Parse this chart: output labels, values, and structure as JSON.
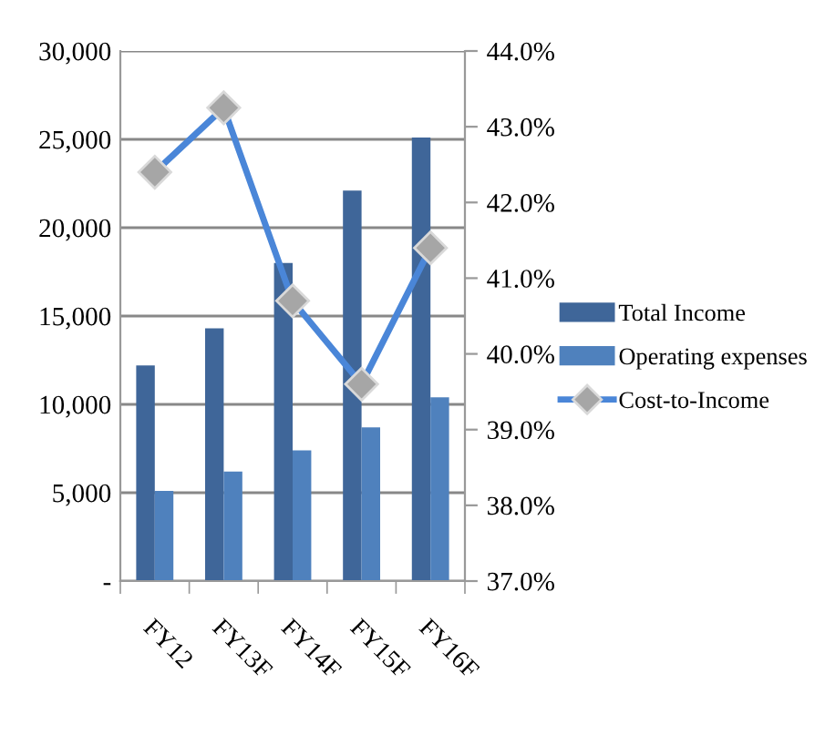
{
  "chart_data": {
    "type": "bar",
    "categories": [
      "FY12",
      "FY13F",
      "FY14F",
      "FY15F",
      "FY16F"
    ],
    "series": [
      {
        "name": "Total Income",
        "color": "#3f6699",
        "values": [
          12200,
          14300,
          18000,
          22100,
          25100
        ]
      },
      {
        "name": "Operating expenses",
        "color": "#4f81bd",
        "values": [
          5100,
          6200,
          7400,
          8700,
          10400
        ]
      },
      {
        "name": "Cost-to-Income",
        "type": "line",
        "axis": "y2",
        "color": "#4a86d8",
        "values": [
          42.4,
          43.25,
          40.7,
          39.6,
          41.4
        ]
      }
    ],
    "ylim": [
      0,
      30000
    ],
    "yticks": [
      {
        "value": 0,
        "label": "-"
      },
      {
        "value": 5000,
        "label": "5,000"
      },
      {
        "value": 10000,
        "label": "10,000"
      },
      {
        "value": 15000,
        "label": "15,000"
      },
      {
        "value": 20000,
        "label": "20,000"
      },
      {
        "value": 25000,
        "label": "25,000"
      },
      {
        "value": 30000,
        "label": "30,000"
      }
    ],
    "y2lim": [
      37,
      44
    ],
    "y2ticks": [
      {
        "value": 37,
        "label": "37.0%"
      },
      {
        "value": 38,
        "label": "38.0%"
      },
      {
        "value": 39,
        "label": "39.0%"
      },
      {
        "value": 40,
        "label": "40.0%"
      },
      {
        "value": 41,
        "label": "41.0%"
      },
      {
        "value": 42,
        "label": "42.0%"
      },
      {
        "value": 43,
        "label": "43.0%"
      },
      {
        "value": 44,
        "label": "44.0%"
      }
    ],
    "grid": "y",
    "legend": "right",
    "marker": "diamond",
    "line_style": "solid"
  }
}
